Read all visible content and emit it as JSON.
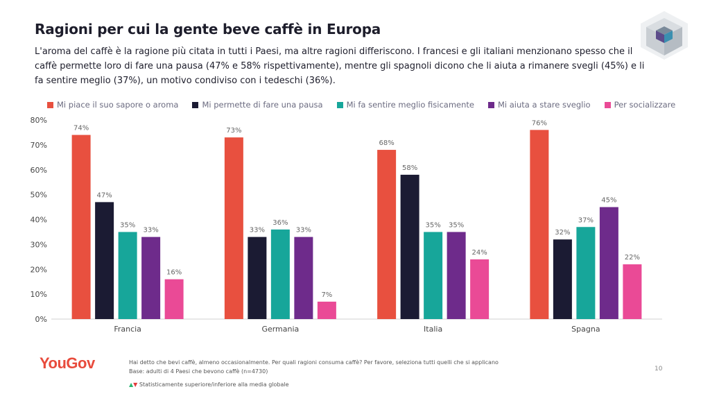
{
  "header": {
    "title": "Ragioni per cui la gente beve caffè in Europa",
    "subtitle": "L'aroma del caffè è la ragione più citata in tutti i Paesi, ma altre ragioni differiscono. I francesi e gli italiani menzionano spesso che il caffè permette loro di fare una pausa (47% e 58% rispettivamente), mentre gli spagnoli dicono che li aiuta a rimanere svegli (45%) e li fa sentire meglio (37%), un motivo condiviso con i tedeschi (36%)."
  },
  "chart_data": {
    "type": "bar",
    "categories": [
      "Francia",
      "Germania",
      "Italia",
      "Spagna"
    ],
    "series": [
      {
        "name": "Mi piace il suo sapore o aroma",
        "color": "#e8503f",
        "values": [
          74,
          73,
          68,
          76
        ]
      },
      {
        "name": "Mi permette di fare una pausa",
        "color": "#1b1b33",
        "values": [
          47,
          33,
          58,
          32
        ]
      },
      {
        "name": "Mi fa sentire meglio fisicamente",
        "color": "#17a69a",
        "values": [
          35,
          36,
          35,
          37
        ]
      },
      {
        "name": "Mi aiuta a stare sveglio",
        "color": "#6e2b8b",
        "values": [
          33,
          33,
          35,
          45
        ]
      },
      {
        "name": "Per socializzare",
        "color": "#ea4a96",
        "values": [
          16,
          7,
          24,
          22
        ]
      }
    ],
    "value_format": "{v}%",
    "yticks": [
      "0%",
      "10%",
      "20%",
      "30%",
      "40%",
      "50%",
      "60%",
      "70%",
      "80%"
    ],
    "ylim": [
      0,
      80
    ],
    "grid": false,
    "legend": "top"
  },
  "footer": {
    "brand": "YouGov",
    "question": "Hai detto che bevi caffè, almeno occasionalmente. Per quali ragioni consuma caffè? Per favore, seleziona tutti quelli che si applicano",
    "base": "Base: adulti di 4 Paesi che bevono caffè (n=4730)",
    "significance_up": "▲",
    "significance_down": "▼",
    "significance_text": "Statisticamente superiore/inferiore alla media globale",
    "page_number": "10"
  },
  "icons": {
    "logo": "cube-logo-icon"
  }
}
